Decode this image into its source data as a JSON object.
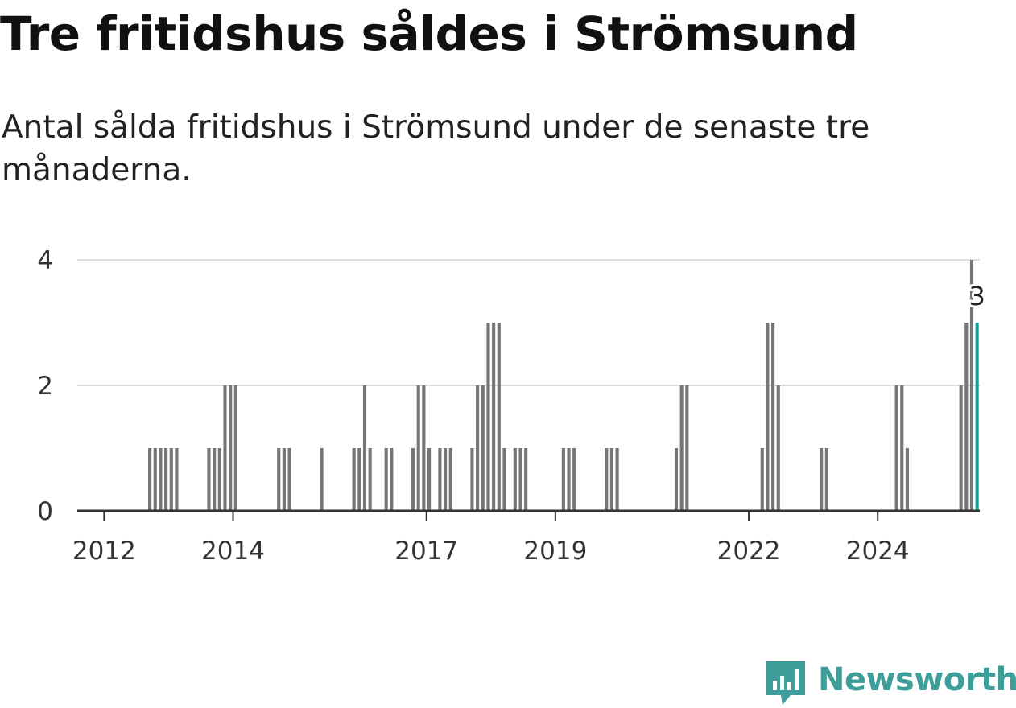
{
  "header": {
    "title": "Tre fritidshus såldes i Strömsund",
    "subtitle": "Antal sålda fritidshus i Strömsund under de senaste tre månaderna."
  },
  "logo": {
    "text": "Newsworthy",
    "icon": "newsworthy-logo-icon"
  },
  "colors": {
    "bar": "#767578",
    "highlight": "#15a396",
    "grid": "#dddddd",
    "axis": "#333333",
    "brand": "#3e9e99"
  },
  "chart_data": {
    "type": "bar",
    "title": "Tre fritidshus såldes i Strömsund",
    "subtitle": "Antal sålda fritidshus i Strömsund under de senaste tre månaderna.",
    "xlabel": "",
    "ylabel": "",
    "ylim": [
      0,
      4
    ],
    "yticks": [
      0,
      2,
      4
    ],
    "xticks": [
      "2012",
      "2014",
      "2017",
      "2019",
      "2022",
      "2024"
    ],
    "grid": true,
    "x_start": "2011-08",
    "x_end": "2025-08",
    "bar_period": "rolling 3 months, monthly",
    "series": [
      {
        "values": [
          {
            "month": "2012-09",
            "value": 1
          },
          {
            "month": "2012-10",
            "value": 1
          },
          {
            "month": "2012-11",
            "value": 1
          },
          {
            "month": "2012-12",
            "value": 1
          },
          {
            "month": "2013-01",
            "value": 1
          },
          {
            "month": "2013-02",
            "value": 1
          },
          {
            "month": "2013-08",
            "value": 1
          },
          {
            "month": "2013-09",
            "value": 1
          },
          {
            "month": "2013-10",
            "value": 1
          },
          {
            "month": "2013-11",
            "value": 2
          },
          {
            "month": "2013-12",
            "value": 2
          },
          {
            "month": "2014-01",
            "value": 2
          },
          {
            "month": "2014-09",
            "value": 1
          },
          {
            "month": "2014-10",
            "value": 1
          },
          {
            "month": "2014-11",
            "value": 1
          },
          {
            "month": "2015-05",
            "value": 1
          },
          {
            "month": "2015-11",
            "value": 1
          },
          {
            "month": "2015-12",
            "value": 1
          },
          {
            "month": "2016-01",
            "value": 2
          },
          {
            "month": "2016-02",
            "value": 1
          },
          {
            "month": "2016-05",
            "value": 1
          },
          {
            "month": "2016-06",
            "value": 1
          },
          {
            "month": "2016-10",
            "value": 1
          },
          {
            "month": "2016-11",
            "value": 2
          },
          {
            "month": "2016-12",
            "value": 2
          },
          {
            "month": "2017-01",
            "value": 1
          },
          {
            "month": "2017-03",
            "value": 1
          },
          {
            "month": "2017-04",
            "value": 1
          },
          {
            "month": "2017-05",
            "value": 1
          },
          {
            "month": "2017-09",
            "value": 1
          },
          {
            "month": "2017-10",
            "value": 2
          },
          {
            "month": "2017-11",
            "value": 2
          },
          {
            "month": "2017-12",
            "value": 3
          },
          {
            "month": "2018-01",
            "value": 3
          },
          {
            "month": "2018-02",
            "value": 3
          },
          {
            "month": "2018-03",
            "value": 1
          },
          {
            "month": "2018-05",
            "value": 1
          },
          {
            "month": "2018-06",
            "value": 1
          },
          {
            "month": "2018-07",
            "value": 1
          },
          {
            "month": "2019-02",
            "value": 1
          },
          {
            "month": "2019-03",
            "value": 1
          },
          {
            "month": "2019-04",
            "value": 1
          },
          {
            "month": "2019-10",
            "value": 1
          },
          {
            "month": "2019-11",
            "value": 1
          },
          {
            "month": "2019-12",
            "value": 1
          },
          {
            "month": "2020-11",
            "value": 1
          },
          {
            "month": "2020-12",
            "value": 2
          },
          {
            "month": "2021-01",
            "value": 2
          },
          {
            "month": "2022-03",
            "value": 1
          },
          {
            "month": "2022-04",
            "value": 3
          },
          {
            "month": "2022-05",
            "value": 3
          },
          {
            "month": "2022-06",
            "value": 2
          },
          {
            "month": "2023-02",
            "value": 1
          },
          {
            "month": "2023-03",
            "value": 1
          },
          {
            "month": "2024-04",
            "value": 2
          },
          {
            "month": "2024-05",
            "value": 2
          },
          {
            "month": "2024-06",
            "value": 1
          },
          {
            "month": "2025-04",
            "value": 2
          },
          {
            "month": "2025-05",
            "value": 3
          },
          {
            "month": "2025-06",
            "value": 4
          },
          {
            "month": "2025-07",
            "value": 3,
            "highlight": true
          }
        ]
      }
    ],
    "annotations": [
      {
        "month": "2025-07",
        "text": "3"
      }
    ]
  }
}
